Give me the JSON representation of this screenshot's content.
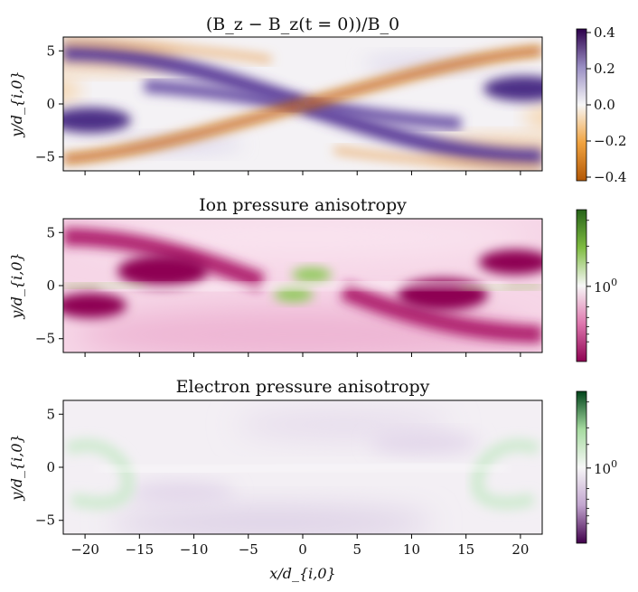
{
  "chart_data": [
    {
      "type": "heatmap",
      "title": "(B_z − B_z(t = 0))/B_0",
      "ylabel": "y/d_{i,0}",
      "xlabel": "",
      "xlim": [
        -22,
        22
      ],
      "ylim": [
        -6.3,
        6.3
      ],
      "xticks": [
        -20,
        -15,
        -10,
        -5,
        0,
        5,
        10,
        15,
        20
      ],
      "xtick_labels_visible": false,
      "yticks": [
        -5,
        0,
        5
      ],
      "ytick_labels": [
        "−5",
        "0",
        "5"
      ],
      "colormap": "PuOr",
      "colorbar": {
        "scale": "linear",
        "range": [
          -0.42,
          0.42
        ],
        "ticks": [
          0.4,
          0.2,
          0.0,
          -0.2,
          -0.4
        ],
        "tick_labels": [
          "0.4",
          "0.2",
          "0.0",
          "−0.2",
          "−0.4"
        ]
      }
    },
    {
      "type": "heatmap",
      "title": "Ion pressure anisotropy",
      "ylabel": "y/d_{i,0}",
      "xlabel": "",
      "xlim": [
        -22,
        22
      ],
      "ylim": [
        -6.3,
        6.3
      ],
      "xticks": [
        -20,
        -15,
        -10,
        -5,
        0,
        5,
        10,
        15,
        20
      ],
      "xtick_labels_visible": false,
      "yticks": [
        -5,
        0,
        5
      ],
      "ytick_labels": [
        "−5",
        "0",
        "5"
      ],
      "colormap": "PiYG",
      "colorbar": {
        "scale": "log",
        "major_ticks": [
          1
        ],
        "tick_labels": [
          "10^0"
        ]
      }
    },
    {
      "type": "heatmap",
      "title": "Electron pressure anisotropy",
      "ylabel": "y/d_{i,0}",
      "xlabel": "x/d_{i,0}",
      "xlim": [
        -22,
        22
      ],
      "ylim": [
        -6.3,
        6.3
      ],
      "xticks": [
        -20,
        -15,
        -10,
        -5,
        0,
        5,
        10,
        15,
        20
      ],
      "xtick_labels": [
        "−20",
        "−15",
        "−10",
        "−5",
        "0",
        "5",
        "10",
        "15",
        "20"
      ],
      "xtick_labels_visible": true,
      "yticks": [
        -5,
        0,
        5
      ],
      "ytick_labels": [
        "−5",
        "0",
        "5"
      ],
      "colormap": "PRGn",
      "colorbar": {
        "scale": "log",
        "major_ticks": [
          1
        ],
        "tick_labels": [
          "10^0"
        ]
      }
    }
  ]
}
